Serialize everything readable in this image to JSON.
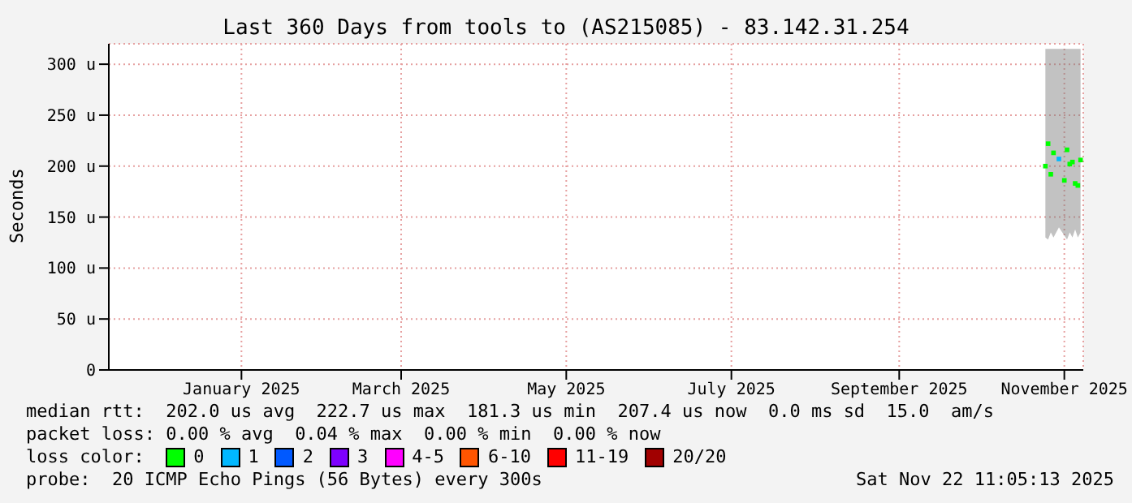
{
  "chart_data": {
    "type": "scatter",
    "title": "Last 360 Days from tools to (AS215085) - 83.142.31.254",
    "ylabel": "Seconds",
    "x": [
      "2025-11-08",
      "2025-11-09",
      "2025-11-10",
      "2025-11-11",
      "2025-11-13",
      "2025-11-15",
      "2025-11-16",
      "2025-11-17",
      "2025-11-18",
      "2025-11-19",
      "2025-11-20",
      "2025-11-21"
    ],
    "xlim": [
      "2024-11-27",
      "2025-11-22"
    ],
    "xticks": [
      {
        "value": "2025-01-15",
        "label": "January 2025"
      },
      {
        "value": "2025-03-15",
        "label": "March 2025"
      },
      {
        "value": "2025-05-15",
        "label": "May 2025"
      },
      {
        "value": "2025-07-15",
        "label": "July 2025"
      },
      {
        "value": "2025-09-15",
        "label": "September 2025"
      },
      {
        "value": "2025-11-15",
        "label": "November 2025"
      }
    ],
    "ylim": [
      0,
      320
    ],
    "yticks": [
      0,
      {
        "value": 50,
        "label": "50 u"
      },
      {
        "value": 100,
        "label": "100 u"
      },
      {
        "value": 150,
        "label": "150 u"
      },
      {
        "value": 200,
        "label": "200 u"
      },
      {
        "value": 250,
        "label": "250 u"
      },
      {
        "value": 300,
        "label": "300 u"
      }
    ],
    "grid": true,
    "marker": "square",
    "legend": "bottom",
    "legend_title": "loss color:",
    "series": [
      {
        "name": "0",
        "color": "#00ff00",
        "values": [
          200,
          222,
          192,
          213,
          null,
          186,
          216,
          202,
          204,
          183,
          181,
          206
        ],
        "lower": [
          130,
          128,
          135,
          130,
          140,
          132,
          128,
          135,
          130,
          138,
          130,
          135
        ],
        "upper": [
          315,
          315,
          315,
          315,
          315,
          315,
          315,
          315,
          315,
          315,
          315,
          315
        ]
      },
      {
        "name": "1",
        "color": "#00b8ff",
        "values": [
          null,
          null,
          null,
          null,
          207,
          null,
          null,
          null,
          null,
          null,
          null,
          null
        ]
      },
      {
        "name": "2",
        "color": "#0059ff",
        "values": [
          null,
          null,
          null,
          null,
          null,
          null,
          null,
          null,
          null,
          null,
          null,
          null
        ]
      },
      {
        "name": "3",
        "color": "#7e00ff",
        "values": [
          null,
          null,
          null,
          null,
          null,
          null,
          null,
          null,
          null,
          null,
          null,
          null
        ]
      },
      {
        "name": "4-5",
        "color": "#ff00ff",
        "values": [
          null,
          null,
          null,
          null,
          null,
          null,
          null,
          null,
          null,
          null,
          null,
          null
        ]
      },
      {
        "name": "6-10",
        "color": "#ff5500",
        "values": [
          null,
          null,
          null,
          null,
          null,
          null,
          null,
          null,
          null,
          null,
          null,
          null
        ]
      },
      {
        "name": "11-19",
        "color": "#ff0000",
        "values": [
          null,
          null,
          null,
          null,
          null,
          null,
          null,
          null,
          null,
          null,
          null,
          null
        ]
      },
      {
        "name": "20/20",
        "color": "#a10000",
        "values": [
          null,
          null,
          null,
          null,
          null,
          null,
          null,
          null,
          null,
          null,
          null,
          null
        ]
      }
    ],
    "annotations": [
      "median rtt:  202.0 us avg  222.7 us max  181.3 us min  207.4 us now  0.0 ms sd  15.0  am/s",
      "packet loss: 0.00 % avg  0.04 % max  0.00 % min  0.00 % now",
      "probe:  20 ICMP Echo Pings (56 Bytes) every 300s",
      "Sat Nov 22 11:05:13 2025"
    ]
  }
}
